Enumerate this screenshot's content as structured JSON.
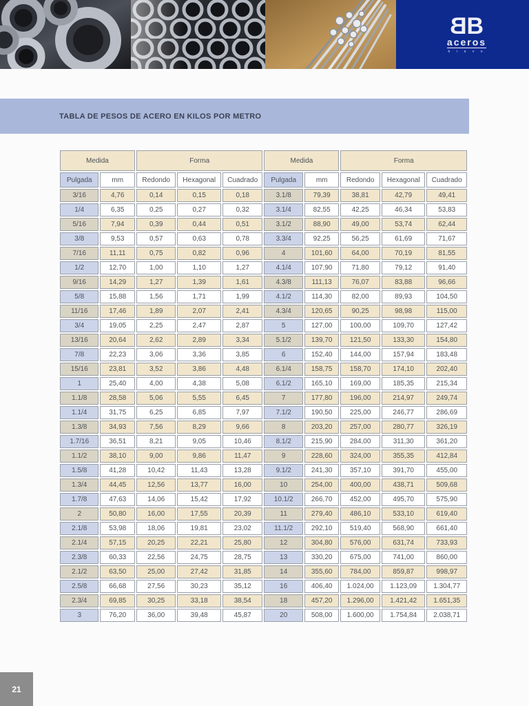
{
  "title": "TABLA DE PESOS DE ACERO EN KILOS POR METRO",
  "logo": {
    "mark_left": "B",
    "mark_right": "B",
    "name": "aceros",
    "tagline": "b r a v o"
  },
  "header_photos": [
    {
      "name": "steel-rings-photo"
    },
    {
      "name": "steel-tubes-photo"
    },
    {
      "name": "steel-rods-photo"
    }
  ],
  "page": {
    "number": "21"
  },
  "colors": {
    "navy": "#0e2a8f",
    "title_bar": "#a9b7da",
    "row_cream": "#f1e6cb",
    "pulgada_tan": "#d9d4c4",
    "pulgada_blue": "#ccd4ea",
    "page_number_bg": "#8c8c8c"
  },
  "table": {
    "group_headers": [
      "Medida",
      "Forma",
      "Medida",
      "Forma"
    ],
    "col_headers": [
      "Pulgada",
      "mm",
      "Redondo",
      "Hexagonal",
      "Cuadrado",
      "Pulgada",
      "mm",
      "Redondo",
      "Hexagonal",
      "Cuadrado"
    ],
    "left_rows": [
      [
        "3/16",
        "4,76",
        "0,14",
        "0,15",
        "0,18"
      ],
      [
        "1/4",
        "6,35",
        "0,25",
        "0,27",
        "0,32"
      ],
      [
        "5/16",
        "7,94",
        "0,39",
        "0,44",
        "0,51"
      ],
      [
        "3/8",
        "9,53",
        "0,57",
        "0,63",
        "0,78"
      ],
      [
        "7/16",
        "11,11",
        "0,75",
        "0,82",
        "0,96"
      ],
      [
        "1/2",
        "12,70",
        "1,00",
        "1,10",
        "1,27"
      ],
      [
        "9/16",
        "14,29",
        "1,27",
        "1,39",
        "1,61"
      ],
      [
        "5/8",
        "15,88",
        "1,56",
        "1,71",
        "1,99"
      ],
      [
        "11/16",
        "17,46",
        "1,89",
        "2,07",
        "2,41"
      ],
      [
        "3/4",
        "19,05",
        "2,25",
        "2,47",
        "2,87"
      ],
      [
        "13/16",
        "20,64",
        "2,62",
        "2,89",
        "3,34"
      ],
      [
        "7/8",
        "22,23",
        "3,06",
        "3,36",
        "3,85"
      ],
      [
        "15/16",
        "23,81",
        "3,52",
        "3,86",
        "4,48"
      ],
      [
        "1",
        "25,40",
        "4,00",
        "4,38",
        "5,08"
      ],
      [
        "1.1/8",
        "28,58",
        "5,06",
        "5,55",
        "6,45"
      ],
      [
        "1.1/4",
        "31,75",
        "6,25",
        "6,85",
        "7,97"
      ],
      [
        "1.3/8",
        "34,93",
        "7,56",
        "8,29",
        "9,66"
      ],
      [
        "1.7/16",
        "36,51",
        "8,21",
        "9,05",
        "10,46"
      ],
      [
        "1.1/2",
        "38,10",
        "9,00",
        "9,86",
        "11,47"
      ],
      [
        "1.5/8",
        "41,28",
        "10,42",
        "11,43",
        "13,28"
      ],
      [
        "1.3/4",
        "44,45",
        "12,56",
        "13,77",
        "16,00"
      ],
      [
        "1.7/8",
        "47,63",
        "14,06",
        "15,42",
        "17,92"
      ],
      [
        "2",
        "50,80",
        "16,00",
        "17,55",
        "20,39"
      ],
      [
        "2.1/8",
        "53,98",
        "18,06",
        "19,81",
        "23,02"
      ],
      [
        "2.1/4",
        "57,15",
        "20,25",
        "22,21",
        "25,80"
      ],
      [
        "2.3/8",
        "60,33",
        "22,56",
        "24,75",
        "28,75"
      ],
      [
        "2.1/2",
        "63,50",
        "25,00",
        "27,42",
        "31,85"
      ],
      [
        "2.5/8",
        "66,68",
        "27,56",
        "30,23",
        "35,12"
      ],
      [
        "2.3/4",
        "69,85",
        "30,25",
        "33,18",
        "38,54"
      ],
      [
        "3",
        "76,20",
        "36,00",
        "39,48",
        "45,87"
      ]
    ],
    "right_rows": [
      [
        "3.1/8",
        "79,39",
        "38,81",
        "42,79",
        "49,41"
      ],
      [
        "3.1/4",
        "82,55",
        "42,25",
        "46,34",
        "53,83"
      ],
      [
        "3.1/2",
        "88,90",
        "49,00",
        "53,74",
        "62,44"
      ],
      [
        "3.3/4",
        "92,25",
        "56,25",
        "61,69",
        "71,67"
      ],
      [
        "4",
        "101,60",
        "64,00",
        "70,19",
        "81,55"
      ],
      [
        "4.1/4",
        "107,90",
        "71,80",
        "79,12",
        "91,40"
      ],
      [
        "4.3/8",
        "111,13",
        "76,07",
        "83,88",
        "96,66"
      ],
      [
        "4.1/2",
        "114,30",
        "82,00",
        "89,93",
        "104,50"
      ],
      [
        "4.3/4",
        "120,65",
        "90,25",
        "98,98",
        "115,00"
      ],
      [
        "5",
        "127,00",
        "100,00",
        "109,70",
        "127,42"
      ],
      [
        "5.1/2",
        "139,70",
        "121,50",
        "133,30",
        "154,80"
      ],
      [
        "6",
        "152,40",
        "144,00",
        "157,94",
        "183,48"
      ],
      [
        "6.1/4",
        "158,75",
        "158,70",
        "174,10",
        "202,40"
      ],
      [
        "6.1/2",
        "165,10",
        "169,00",
        "185,35",
        "215,34"
      ],
      [
        "7",
        "177,80",
        "196,00",
        "214,97",
        "249,74"
      ],
      [
        "7.1/2",
        "190,50",
        "225,00",
        "246,77",
        "286,69"
      ],
      [
        "8",
        "203,20",
        "257,00",
        "280,77",
        "326,19"
      ],
      [
        "8.1/2",
        "215,90",
        "284,00",
        "311,30",
        "361,20"
      ],
      [
        "9",
        "228,60",
        "324,00",
        "355,35",
        "412,84"
      ],
      [
        "9.1/2",
        "241,30",
        "357,10",
        "391,70",
        "455,00"
      ],
      [
        "10",
        "254,00",
        "400,00",
        "438,71",
        "509,68"
      ],
      [
        "10.1/2",
        "266,70",
        "452,00",
        "495,70",
        "575,90"
      ],
      [
        "11",
        "279,40",
        "486,10",
        "533,10",
        "619,40"
      ],
      [
        "11.1/2",
        "292,10",
        "519,40",
        "568,90",
        "661,40"
      ],
      [
        "12",
        "304,80",
        "576,00",
        "631,74",
        "733,93"
      ],
      [
        "13",
        "330,20",
        "675,00",
        "741,00",
        "860,00"
      ],
      [
        "14",
        "355,60",
        "784,00",
        "859,87",
        "998,97"
      ],
      [
        "16",
        "406,40",
        "1.024,00",
        "1.123,09",
        "1.304,77"
      ],
      [
        "18",
        "457,20",
        "1.296,00",
        "1.421,42",
        "1.651,35"
      ],
      [
        "20",
        "508,00",
        "1.600,00",
        "1.754,84",
        "2.038,71"
      ]
    ]
  }
}
